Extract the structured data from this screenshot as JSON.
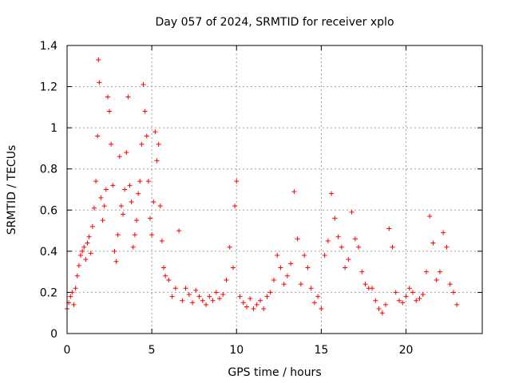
{
  "chart_data": {
    "type": "scatter",
    "title": "Day 057 of 2024, SRMTID for receiver xplo",
    "xlabel": "GPS time / hours",
    "ylabel": "SRMTID / TECUs",
    "xlim": [
      0,
      24.5
    ],
    "ylim": [
      0,
      1.4
    ],
    "xticks": [
      0,
      5,
      10,
      15,
      20
    ],
    "xtick_labels": [
      "0",
      "5",
      "10",
      "15",
      "20"
    ],
    "yticks": [
      0,
      0.2,
      0.4,
      0.6,
      0.8,
      1.0,
      1.2,
      1.4
    ],
    "ytick_labels": [
      "0",
      "0.2",
      "0.4",
      "0.6",
      "0.8",
      "1",
      "1.2",
      "1.4"
    ],
    "grid": true,
    "marker": "+",
    "color": "#ff0000",
    "series": [
      {
        "name": "SRMTID",
        "x": [
          0.0,
          0.1,
          0.2,
          0.3,
          0.4,
          0.5,
          0.6,
          0.7,
          0.8,
          0.9,
          1.0,
          1.1,
          1.2,
          1.3,
          1.4,
          1.5,
          1.6,
          1.7,
          1.8,
          1.85,
          1.9,
          2.0,
          2.1,
          2.2,
          2.3,
          2.4,
          2.5,
          2.6,
          2.7,
          2.8,
          2.9,
          3.0,
          3.1,
          3.2,
          3.3,
          3.4,
          3.5,
          3.6,
          3.7,
          3.8,
          3.9,
          4.0,
          4.1,
          4.2,
          4.3,
          4.4,
          4.5,
          4.6,
          4.7,
          4.8,
          4.9,
          5.0,
          5.1,
          5.2,
          5.3,
          5.4,
          5.5,
          5.6,
          5.7,
          5.8,
          6.0,
          6.2,
          6.4,
          6.6,
          6.8,
          7.0,
          7.2,
          7.4,
          7.6,
          7.8,
          8.0,
          8.2,
          8.4,
          8.6,
          8.8,
          9.0,
          9.2,
          9.4,
          9.6,
          9.8,
          9.9,
          10.0,
          10.2,
          10.4,
          10.6,
          10.8,
          11.0,
          11.2,
          11.4,
          11.6,
          11.8,
          12.0,
          12.2,
          12.4,
          12.6,
          12.8,
          13.0,
          13.2,
          13.4,
          13.6,
          13.8,
          14.0,
          14.2,
          14.4,
          14.6,
          14.8,
          15.0,
          15.2,
          15.4,
          15.6,
          15.8,
          16.0,
          16.2,
          16.4,
          16.6,
          16.8,
          17.0,
          17.2,
          17.4,
          17.6,
          17.8,
          18.0,
          18.2,
          18.4,
          18.6,
          18.8,
          19.0,
          19.2,
          19.4,
          19.6,
          19.8,
          20.0,
          20.2,
          20.4,
          20.6,
          20.8,
          21.0,
          21.2,
          21.4,
          21.6,
          21.8,
          22.0,
          22.2,
          22.4,
          22.6,
          22.8,
          23.0
        ],
        "y": [
          0.12,
          0.15,
          0.18,
          0.2,
          0.14,
          0.22,
          0.28,
          0.33,
          0.38,
          0.4,
          0.42,
          0.36,
          0.44,
          0.47,
          0.39,
          0.52,
          0.61,
          0.74,
          0.96,
          1.33,
          1.22,
          0.66,
          0.55,
          0.62,
          0.7,
          1.15,
          1.08,
          0.92,
          0.72,
          0.4,
          0.35,
          0.48,
          0.86,
          0.62,
          0.58,
          0.7,
          0.88,
          1.15,
          0.72,
          0.64,
          0.42,
          0.48,
          0.55,
          0.68,
          0.74,
          0.92,
          1.21,
          1.08,
          0.96,
          0.74,
          0.56,
          0.48,
          0.64,
          0.98,
          0.84,
          0.92,
          0.62,
          0.45,
          0.32,
          0.28,
          0.26,
          0.18,
          0.22,
          0.5,
          0.16,
          0.22,
          0.19,
          0.15,
          0.21,
          0.18,
          0.16,
          0.14,
          0.18,
          0.16,
          0.2,
          0.17,
          0.19,
          0.26,
          0.42,
          0.32,
          0.62,
          0.74,
          0.18,
          0.15,
          0.13,
          0.17,
          0.12,
          0.14,
          0.16,
          0.12,
          0.18,
          0.2,
          0.26,
          0.38,
          0.32,
          0.24,
          0.28,
          0.34,
          0.69,
          0.46,
          0.24,
          0.38,
          0.32,
          0.22,
          0.15,
          0.18,
          0.12,
          0.38,
          0.45,
          0.68,
          0.56,
          0.47,
          0.42,
          0.32,
          0.36,
          0.59,
          0.46,
          0.42,
          0.3,
          0.24,
          0.22,
          0.22,
          0.16,
          0.12,
          0.1,
          0.14,
          0.51,
          0.42,
          0.2,
          0.16,
          0.15,
          0.18,
          0.22,
          0.2,
          0.16,
          0.17,
          0.19,
          0.3,
          0.57,
          0.44,
          0.26,
          0.3,
          0.49,
          0.42,
          0.24,
          0.2,
          0.14
        ]
      }
    ]
  }
}
